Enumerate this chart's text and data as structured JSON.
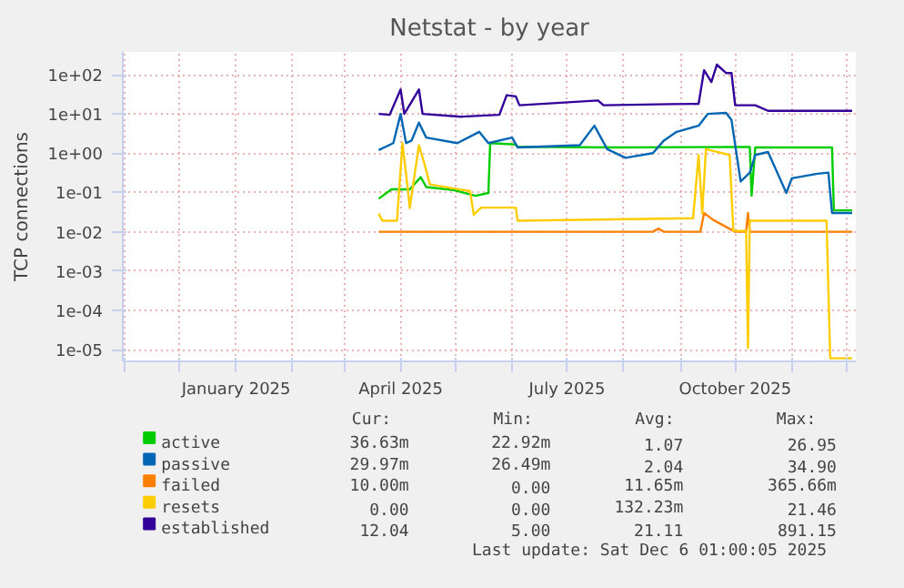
{
  "chart_data": {
    "type": "line",
    "title": "Netstat - by year",
    "ylabel": "TCP connections",
    "log": "y",
    "xlim": [
      "2024-10-31",
      "2025-12-06"
    ],
    "ylim": [
      5e-06,
      380
    ],
    "xticks": [
      {
        "value": "2024-11-01",
        "label": null
      },
      {
        "value": "2024-12-01",
        "label": null
      },
      {
        "value": "2025-01-01",
        "label": "January 2025"
      },
      {
        "value": "2025-02-01",
        "label": null
      },
      {
        "value": "2025-03-01",
        "label": null
      },
      {
        "value": "2025-04-01",
        "label": "April 2025"
      },
      {
        "value": "2025-05-01",
        "label": null
      },
      {
        "value": "2025-06-01",
        "label": null
      },
      {
        "value": "2025-07-01",
        "label": "July 2025"
      },
      {
        "value": "2025-08-01",
        "label": null
      },
      {
        "value": "2025-09-01",
        "label": null
      },
      {
        "value": "2025-10-01",
        "label": "October 2025"
      },
      {
        "value": "2025-11-01",
        "label": null
      },
      {
        "value": "2025-12-01",
        "label": null
      }
    ],
    "yticks": [
      {
        "value": 1e-05,
        "label": "1e-05"
      },
      {
        "value": 0.0001,
        "label": "1e-04"
      },
      {
        "value": 0.001,
        "label": "1e-03"
      },
      {
        "value": 0.01,
        "label": "1e-02"
      },
      {
        "value": 0.1,
        "label": "1e-01"
      },
      {
        "value": 1,
        "label": "1e+00"
      },
      {
        "value": 10,
        "label": "1e+01"
      },
      {
        "value": 100,
        "label": "1e+02"
      }
    ],
    "grid": true,
    "legend": "bottom",
    "series": [
      {
        "name": "active",
        "color": "#00cc00",
        "x": [
          "2025-03-20",
          "2025-03-27",
          "2025-04-06",
          "2025-04-12",
          "2025-04-15",
          "2025-04-30",
          "2025-05-12",
          "2025-05-19",
          "2025-05-20",
          "2025-06-03",
          "2025-06-04",
          "2025-07-28",
          "2025-10-09",
          "2025-10-10",
          "2025-10-12",
          "2025-11-23",
          "2025-11-24",
          "2025-12-04"
        ],
        "values": [
          0.069,
          0.12,
          0.12,
          0.245,
          0.137,
          0.115,
          0.082,
          0.097,
          1.8,
          1.67,
          1.46,
          1.4,
          1.45,
          0.082,
          1.4,
          1.4,
          0.035,
          0.035
        ]
      },
      {
        "name": "passive",
        "color": "#0066b3",
        "x": [
          "2025-03-20",
          "2025-03-28",
          "2025-04-01",
          "2025-04-04",
          "2025-04-07",
          "2025-04-11",
          "2025-04-15",
          "2025-05-02",
          "2025-05-14",
          "2025-05-19",
          "2025-06-01",
          "2025-06-04",
          "2025-07-08",
          "2025-07-16",
          "2025-07-23",
          "2025-08-02",
          "2025-08-17",
          "2025-08-23",
          "2025-08-30",
          "2025-09-11",
          "2025-09-16",
          "2025-09-26",
          "2025-09-29",
          "2025-10-04",
          "2025-10-09",
          "2025-10-12",
          "2025-10-19",
          "2025-10-29",
          "2025-11-01",
          "2025-11-15",
          "2025-11-21",
          "2025-11-23",
          "2025-12-04"
        ],
        "values": [
          1.2,
          1.8,
          10,
          1.8,
          2.1,
          6,
          2.5,
          1.8,
          3.5,
          1.8,
          2.5,
          1.4,
          1.6,
          5,
          1.27,
          0.76,
          1.0,
          2.1,
          3.5,
          5,
          10,
          10.6,
          7,
          0.19,
          0.32,
          0.9,
          1.07,
          0.097,
          0.23,
          0.3,
          0.32,
          0.03,
          0.03
        ]
      },
      {
        "name": "failed",
        "color": "#ff8000",
        "x": [
          "2025-03-20",
          "2025-08-17",
          "2025-08-20",
          "2025-08-23",
          "2025-09-12",
          "2025-09-14",
          "2025-09-19",
          "2025-10-01",
          "2025-10-07",
          "2025-10-08",
          "2025-10-09",
          "2025-12-04"
        ],
        "values": [
          0.01,
          0.01,
          0.012,
          0.01,
          0.01,
          0.03,
          0.02,
          0.01,
          0.01,
          0.03,
          0.01,
          0.01
        ]
      },
      {
        "name": "resets",
        "color": "#ffcc00",
        "x": [
          "2025-03-20",
          "2025-03-22",
          "2025-03-30",
          "2025-04-02",
          "2025-04-05",
          "2025-04-06",
          "2025-04-11",
          "2025-04-14",
          "2025-04-17",
          "2025-05-09",
          "2025-05-11",
          "2025-05-15",
          "2025-06-03",
          "2025-06-04",
          "2025-09-08",
          "2025-09-11",
          "2025-09-13",
          "2025-09-15",
          "2025-09-28",
          "2025-09-30",
          "2025-10-07",
          "2025-10-08",
          "2025-10-09",
          "2025-11-20",
          "2025-11-22",
          "2025-12-04"
        ],
        "values": [
          0.029,
          0.019,
          0.019,
          1.8,
          0.115,
          0.04,
          1.6,
          0.54,
          0.16,
          0.108,
          0.027,
          0.041,
          0.041,
          0.019,
          0.022,
          0.9,
          0.029,
          1.27,
          0.9,
          0.0105,
          0.0105,
          1.1e-05,
          0.019,
          0.019,
          6e-06,
          6e-06
        ]
      },
      {
        "name": "established",
        "color": "#330099",
        "x": [
          "2025-03-20",
          "2025-03-26",
          "2025-04-01",
          "2025-04-03",
          "2025-04-11",
          "2025-04-13",
          "2025-05-04",
          "2025-05-25",
          "2025-05-29",
          "2025-06-03",
          "2025-06-05",
          "2025-07-18",
          "2025-07-21",
          "2025-08-27",
          "2025-09-11",
          "2025-09-14",
          "2025-09-18",
          "2025-09-21",
          "2025-09-26",
          "2025-09-29",
          "2025-10-01",
          "2025-10-12",
          "2025-10-19",
          "2025-12-04"
        ],
        "values": [
          10,
          9.5,
          42,
          10,
          42,
          10,
          8.5,
          9.5,
          30,
          28,
          16.6,
          22,
          16.6,
          17.8,
          18,
          130,
          65,
          180,
          110,
          110,
          16.6,
          16.6,
          12,
          12
        ]
      }
    ],
    "annotations": [
      "Cur:",
      "Min:",
      "Avg:",
      "Max:",
      "36.63m",
      "22.92m",
      "1.07",
      "26.95",
      "29.97m",
      "26.49m",
      "2.04",
      "34.90",
      "10.00m",
      "0.00",
      "11.65m",
      "365.66m",
      "0.00",
      "0.00",
      "132.23m",
      "21.46",
      "12.04",
      "5.00",
      "21.11",
      "891.15",
      "Last update: Sat Dec  6 01:00:05 2025"
    ]
  }
}
